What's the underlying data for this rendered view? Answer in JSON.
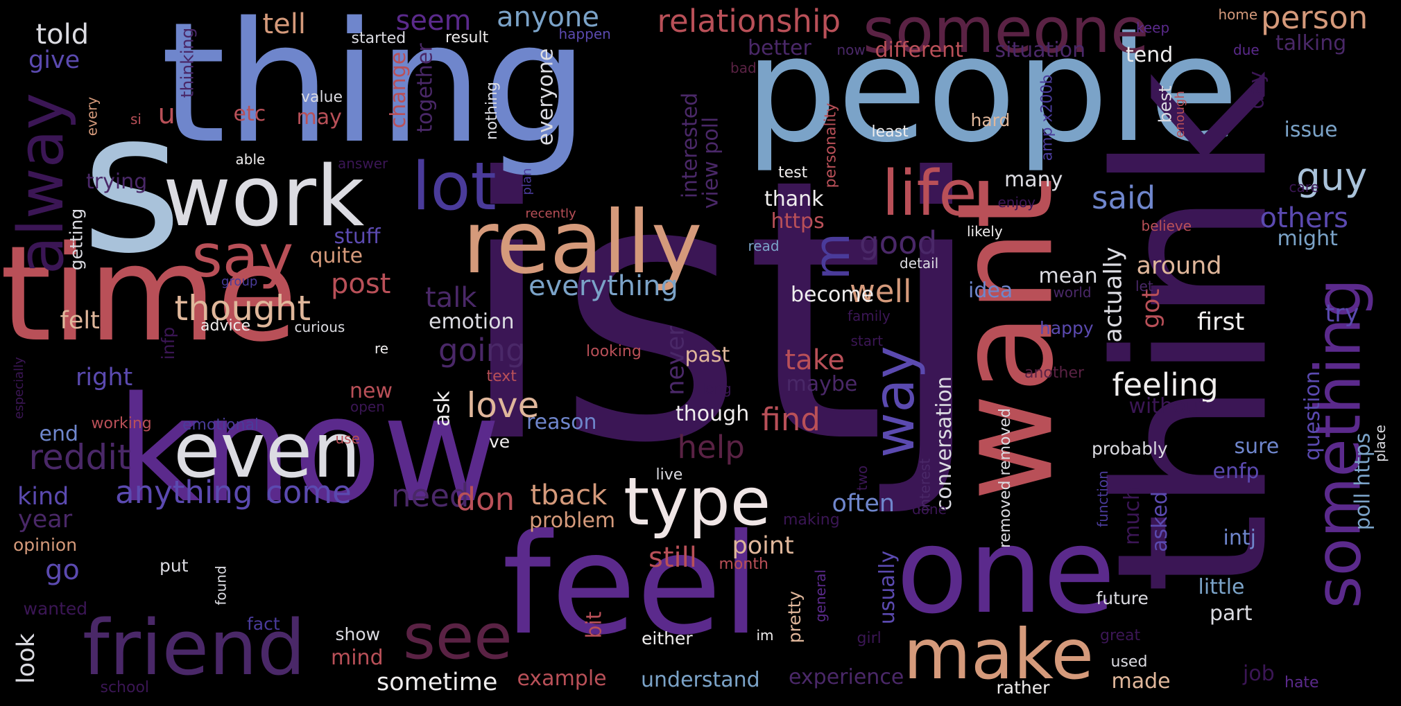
{
  "background_color": "#000000",
  "palette": {
    "dark_purple": "#3b1655",
    "purple": "#5b2a8c",
    "indigo": "#4a3b9a",
    "periwinkle": "#6f86cc",
    "steel_blue": "#7ba3c8",
    "light_blue": "#a9c2da",
    "pale": "#dcdce2",
    "white": "#f0eeee",
    "tan": "#d59a7b",
    "peach": "#e0b79b",
    "rose": "#b95058",
    "maroon": "#5a2244"
  },
  "words": [
    {
      "text": "istj",
      "color": "#3b1655"
    },
    {
      "text": "thing",
      "color": "#6f86cc"
    },
    {
      "text": "people",
      "color": "#7ba3c8"
    },
    {
      "text": "know",
      "color": "#5b2a8c"
    },
    {
      "text": "think",
      "color": "#3b1655"
    },
    {
      "text": "time",
      "color": "#b95058"
    },
    {
      "text": "s",
      "color": "#a9c2da"
    },
    {
      "text": "feel",
      "color": "#5b2a8c"
    },
    {
      "text": "want",
      "color": "#b95058"
    },
    {
      "text": "one",
      "color": "#5b2a8c"
    },
    {
      "text": "really",
      "color": "#d59a7b"
    },
    {
      "text": "work",
      "color": "#dcdce2"
    },
    {
      "text": "even",
      "color": "#dcdce2"
    },
    {
      "text": "friend",
      "color": "#4a2868"
    },
    {
      "text": "someone",
      "color": "#5a2244"
    },
    {
      "text": "make",
      "color": "#d59a7b"
    },
    {
      "text": "type",
      "color": "#f0e6e6"
    },
    {
      "text": "alway",
      "color": "#3b1655"
    },
    {
      "text": "lot",
      "color": "#4a3b9a"
    },
    {
      "text": "life",
      "color": "#b95058"
    },
    {
      "text": "say",
      "color": "#b95058"
    },
    {
      "text": "something",
      "color": "#5b2a8c"
    },
    {
      "text": "see",
      "color": "#5a2244"
    },
    {
      "text": "way",
      "color": "#5b4ab0"
    },
    {
      "text": "relationship",
      "color": "#b95058"
    },
    {
      "text": "person",
      "color": "#d59a7b"
    },
    {
      "text": "m",
      "color": "#4a3b9a"
    },
    {
      "text": "guy",
      "color": "#a9c2da"
    },
    {
      "text": "thought",
      "color": "#e0b79b"
    },
    {
      "text": "said",
      "color": "#6f86cc"
    },
    {
      "text": "others",
      "color": "#5b4ab0"
    },
    {
      "text": "feeling",
      "color": "#f0eeee"
    },
    {
      "text": "everything",
      "color": "#7ba3c8"
    },
    {
      "text": "going",
      "color": "#4a2868"
    },
    {
      "text": "love",
      "color": "#e0b79b"
    },
    {
      "text": "reddit",
      "color": "#4a2868"
    },
    {
      "text": "anything",
      "color": "#5b4ab0"
    },
    {
      "text": "come",
      "color": "#5b4ab0"
    },
    {
      "text": "need",
      "color": "#4a2868"
    },
    {
      "text": "don",
      "color": "#b95058"
    },
    {
      "text": "tback",
      "color": "#d59a7b"
    },
    {
      "text": "help",
      "color": "#5a2244"
    },
    {
      "text": "find",
      "color": "#b95058"
    },
    {
      "text": "take",
      "color": "#b95058"
    },
    {
      "text": "well",
      "color": "#d59a7b"
    },
    {
      "text": "good",
      "color": "#4a2868"
    },
    {
      "text": "post",
      "color": "#b95058"
    },
    {
      "text": "talk",
      "color": "#4a2868"
    },
    {
      "text": "tell",
      "color": "#d59a7b"
    },
    {
      "text": "seem",
      "color": "#5b2a8c"
    },
    {
      "text": "anyone",
      "color": "#7ba3c8"
    },
    {
      "text": "told",
      "color": "#dcdce2"
    },
    {
      "text": "give",
      "color": "#5b4ab0"
    },
    {
      "text": "u",
      "color": "#b95058"
    },
    {
      "text": "etc",
      "color": "#b95058"
    },
    {
      "text": "may",
      "color": "#b95058"
    },
    {
      "text": "stuff",
      "color": "#5b4ab0"
    },
    {
      "text": "quite",
      "color": "#d59a7b"
    },
    {
      "text": "felt",
      "color": "#e0b79b"
    },
    {
      "text": "right",
      "color": "#5b4ab0"
    },
    {
      "text": "new",
      "color": "#b95058"
    },
    {
      "text": "end",
      "color": "#6f86cc"
    },
    {
      "text": "kind",
      "color": "#5b4ab0"
    },
    {
      "text": "year",
      "color": "#4a2868"
    },
    {
      "text": "go",
      "color": "#5b4ab0"
    },
    {
      "text": "look",
      "color": "#dcdce2"
    },
    {
      "text": "opinion",
      "color": "#d59a7b"
    },
    {
      "text": "wanted",
      "color": "#3b1655"
    },
    {
      "text": "mind",
      "color": "#b95058"
    },
    {
      "text": "sometime",
      "color": "#f0eeee"
    },
    {
      "text": "example",
      "color": "#b95058"
    },
    {
      "text": "understand",
      "color": "#7ba3c8"
    },
    {
      "text": "experience",
      "color": "#4a2868"
    },
    {
      "text": "problem",
      "color": "#d59a7b"
    },
    {
      "text": "still",
      "color": "#b95058"
    },
    {
      "text": "point",
      "color": "#e0b79b"
    },
    {
      "text": "often",
      "color": "#6f86cc"
    },
    {
      "text": "usually",
      "color": "#5b4ab0"
    },
    {
      "text": "maybe",
      "color": "#4a2868"
    },
    {
      "text": "past",
      "color": "#e0b79b"
    },
    {
      "text": "though",
      "color": "#f0eeee"
    },
    {
      "text": "reason",
      "color": "#6f86cc"
    },
    {
      "text": "emotion",
      "color": "#dcdce2"
    },
    {
      "text": "ask",
      "color": "#f0eeee"
    },
    {
      "text": "become",
      "color": "#f0eeee"
    },
    {
      "text": "idea",
      "color": "#6f86cc"
    },
    {
      "text": "mean",
      "color": "#dcdce2"
    },
    {
      "text": "world",
      "color": "#4a2868"
    },
    {
      "text": "around",
      "color": "#e0b79b"
    },
    {
      "text": "first",
      "color": "#f0eeee"
    },
    {
      "text": "got",
      "color": "#b95058"
    },
    {
      "text": "actually",
      "color": "#dcdce2"
    },
    {
      "text": "many",
      "color": "#dcdce2"
    },
    {
      "text": "https",
      "color": "#b95058"
    },
    {
      "text": "thank",
      "color": "#f0eeee"
    },
    {
      "text": "test",
      "color": "#f0eeee"
    },
    {
      "text": "least",
      "color": "#f0eeee"
    },
    {
      "text": "hard",
      "color": "#e0b79b"
    },
    {
      "text": "better",
      "color": "#4a2868"
    },
    {
      "text": "different",
      "color": "#b95058"
    },
    {
      "text": "situation",
      "color": "#4a2868"
    },
    {
      "text": "tend",
      "color": "#f0eeee"
    },
    {
      "text": "talking",
      "color": "#4a2868"
    },
    {
      "text": "issue",
      "color": "#7ba3c8"
    },
    {
      "text": "might",
      "color": "#7ba3c8"
    },
    {
      "text": "try",
      "color": "#5b4ab0"
    },
    {
      "text": "view poll",
      "color": "#4a2868"
    },
    {
      "text": "interested",
      "color": "#4a2868"
    },
    {
      "text": "change",
      "color": "#b95058"
    },
    {
      "text": "together",
      "color": "#4a2868"
    },
    {
      "text": "everyone",
      "color": "#dcdce2"
    },
    {
      "text": "nothing",
      "color": "#dcdce2"
    },
    {
      "text": "personality",
      "color": "#b95058"
    },
    {
      "text": "amp x200b",
      "color": "#4a3b9a"
    },
    {
      "text": "best",
      "color": "#dcdce2"
    },
    {
      "text": "enough",
      "color": "#b95058"
    },
    {
      "text": "day",
      "color": "#3b1655"
    },
    {
      "text": "keep",
      "color": "#5b2a8c"
    },
    {
      "text": "due",
      "color": "#5b2a8c"
    },
    {
      "text": "home",
      "color": "#d59a7b"
    },
    {
      "text": "care",
      "color": "#3b1655"
    },
    {
      "text": "believe",
      "color": "#b95058"
    },
    {
      "text": "let",
      "color": "#4a2868"
    },
    {
      "text": "poll https",
      "color": "#7ba3c8"
    },
    {
      "text": "question",
      "color": "#5b4ab0"
    },
    {
      "text": "place",
      "color": "#dcdce2"
    },
    {
      "text": "sure",
      "color": "#6f86cc"
    },
    {
      "text": "enfp",
      "color": "#5b4ab0"
    },
    {
      "text": "intj",
      "color": "#6f86cc"
    },
    {
      "text": "asked",
      "color": "#5b4ab0"
    },
    {
      "text": "much",
      "color": "#3b1655"
    },
    {
      "text": "without",
      "color": "#3b1655"
    },
    {
      "text": "probably",
      "color": "#dcdce2"
    },
    {
      "text": "function",
      "color": "#4a3b9a"
    },
    {
      "text": "little",
      "color": "#7ba3c8"
    },
    {
      "text": "part",
      "color": "#dcdce2"
    },
    {
      "text": "future",
      "color": "#dcdce2"
    },
    {
      "text": "job",
      "color": "#3b1655"
    },
    {
      "text": "used",
      "color": "#dcdce2"
    },
    {
      "text": "made",
      "color": "#e0b79b"
    },
    {
      "text": "hate",
      "color": "#5b2a8c"
    },
    {
      "text": "great",
      "color": "#3b1655"
    },
    {
      "text": "rather",
      "color": "#f0eeee"
    },
    {
      "text": "removed removed",
      "color": "#dcdce2"
    },
    {
      "text": "conversation",
      "color": "#dcdce2"
    },
    {
      "text": "interest",
      "color": "#4a2868"
    },
    {
      "text": "done",
      "color": "#3b1655"
    },
    {
      "text": "two",
      "color": "#3b1655"
    },
    {
      "text": "girl",
      "color": "#3b1655"
    },
    {
      "text": "general",
      "color": "#5b2a8c"
    },
    {
      "text": "pretty",
      "color": "#e0b79b"
    },
    {
      "text": "making",
      "color": "#3b1655"
    },
    {
      "text": "month",
      "color": "#b95058"
    },
    {
      "text": "im",
      "color": "#f0eeee"
    },
    {
      "text": "either",
      "color": "#f0eeee"
    },
    {
      "text": "live",
      "color": "#dcdce2"
    },
    {
      "text": "long",
      "color": "#3b1655"
    },
    {
      "text": "text",
      "color": "#b95058"
    },
    {
      "text": "looking",
      "color": "#b95058"
    },
    {
      "text": "start",
      "color": "#3b1655"
    },
    {
      "text": "family",
      "color": "#3b1655"
    },
    {
      "text": "detail",
      "color": "#dcdce2"
    },
    {
      "text": "read",
      "color": "#7ba3c8"
    },
    {
      "text": "likely",
      "color": "#f0eeee"
    },
    {
      "text": "happy",
      "color": "#5b4ab0"
    },
    {
      "text": "another",
      "color": "#5a2244"
    },
    {
      "text": "never",
      "color": "#4a2868"
    },
    {
      "text": "ve",
      "color": "#f0eeee"
    },
    {
      "text": "bit",
      "color": "#b95058"
    },
    {
      "text": "show",
      "color": "#dcdce2"
    },
    {
      "text": "fact",
      "color": "#4a3b9a"
    },
    {
      "text": "put",
      "color": "#dcdce2"
    },
    {
      "text": "found",
      "color": "#dcdce2"
    },
    {
      "text": "school",
      "color": "#3b1655"
    },
    {
      "text": "working",
      "color": "#b95058"
    },
    {
      "text": "emotional",
      "color": "#4a3b9a"
    },
    {
      "text": "open",
      "color": "#3b1655"
    },
    {
      "text": "use",
      "color": "#b95058"
    },
    {
      "text": "especially",
      "color": "#3b1655"
    },
    {
      "text": "infp",
      "color": "#3b1655"
    },
    {
      "text": "advice",
      "color": "#f0eeee"
    },
    {
      "text": "curious",
      "color": "#dcdce2"
    },
    {
      "text": "re",
      "color": "#f0eeee"
    },
    {
      "text": "group",
      "color": "#4a3b9a"
    },
    {
      "text": "getting",
      "color": "#dcdce2"
    },
    {
      "text": "trying",
      "color": "#4a2868"
    },
    {
      "text": "able",
      "color": "#f0eeee"
    },
    {
      "text": "answer",
      "color": "#3b1655"
    },
    {
      "text": "every",
      "color": "#d59a7b"
    },
    {
      "text": "si",
      "color": "#b95058"
    },
    {
      "text": "thinking",
      "color": "#4a2868"
    },
    {
      "text": "value",
      "color": "#dcdce2"
    },
    {
      "text": "started",
      "color": "#dcdce2"
    },
    {
      "text": "result",
      "color": "#f0eeee"
    },
    {
      "text": "happen",
      "color": "#5b4ab0"
    },
    {
      "text": "bad",
      "color": "#5a2244"
    },
    {
      "text": "now",
      "color": "#4a2868"
    },
    {
      "text": "plan",
      "color": "#4a3b9a"
    },
    {
      "text": "recently",
      "color": "#b95058"
    },
    {
      "text": "enjoy",
      "color": "#3b1655"
    }
  ]
}
